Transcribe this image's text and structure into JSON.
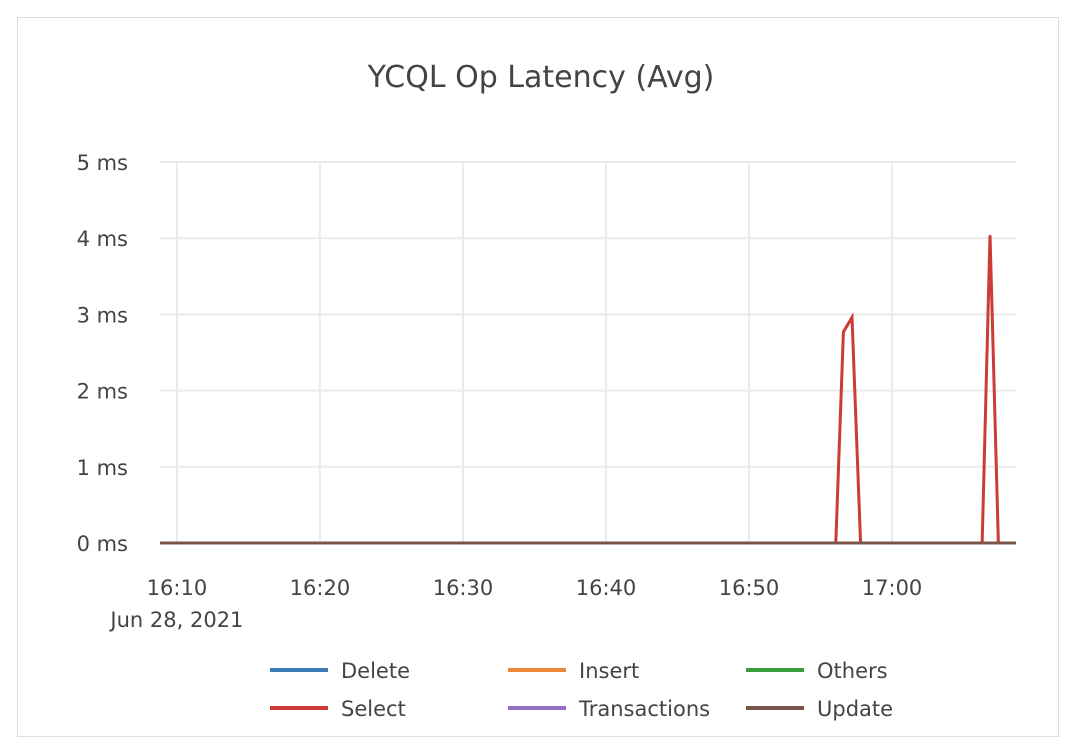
{
  "chart_data": {
    "type": "line",
    "title": "YCQL Op Latency (Avg)",
    "xlabel": "",
    "ylabel": "",
    "x_axis": {
      "type": "time",
      "date": "Jun 28, 2021",
      "range": [
        "16:08:49",
        "17:08:40"
      ],
      "ticks": [
        "16:10",
        "16:20",
        "16:30",
        "16:40",
        "16:50",
        "17:00"
      ],
      "first_tick_sublabel": "Jun 28, 2021"
    },
    "y_axis": {
      "unit": "ms",
      "range": [
        0,
        5
      ],
      "ticks": [
        "0 ms",
        "1 ms",
        "2 ms",
        "3 ms",
        "4 ms",
        "5 ms"
      ]
    },
    "grid": true,
    "legend_position": "bottom",
    "x": [
      "16:08:49",
      "16:56:04",
      "16:56:36",
      "16:57:12",
      "16:57:48",
      "17:06:18",
      "17:06:51",
      "17:07:26",
      "17:08:40"
    ],
    "series": [
      {
        "name": "Delete",
        "color": "#3d7ab8",
        "values": [
          0,
          0,
          0,
          0,
          0,
          0,
          0,
          0,
          0
        ]
      },
      {
        "name": "Insert",
        "color": "#f0883a",
        "values": [
          0,
          0,
          0,
          0,
          0,
          0,
          0,
          0,
          0
        ]
      },
      {
        "name": "Others",
        "color": "#3a9e3a",
        "values": [
          0,
          0,
          0,
          0,
          0,
          0,
          0,
          0,
          0
        ]
      },
      {
        "name": "Transactions",
        "color": "#9370c4",
        "values": [
          0,
          0,
          0,
          0,
          0,
          0,
          0,
          0,
          0
        ]
      },
      {
        "name": "Select",
        "color": "#cc3b35",
        "values": [
          0,
          0,
          2.77,
          2.96,
          0,
          0,
          4.04,
          0,
          0
        ]
      },
      {
        "name": "Update",
        "color": "#7a5448",
        "values": [
          0,
          0,
          0,
          0,
          0,
          0,
          0,
          0,
          0
        ]
      }
    ],
    "legend_order": [
      "Delete",
      "Insert",
      "Others",
      "Select",
      "Transactions",
      "Update"
    ]
  }
}
